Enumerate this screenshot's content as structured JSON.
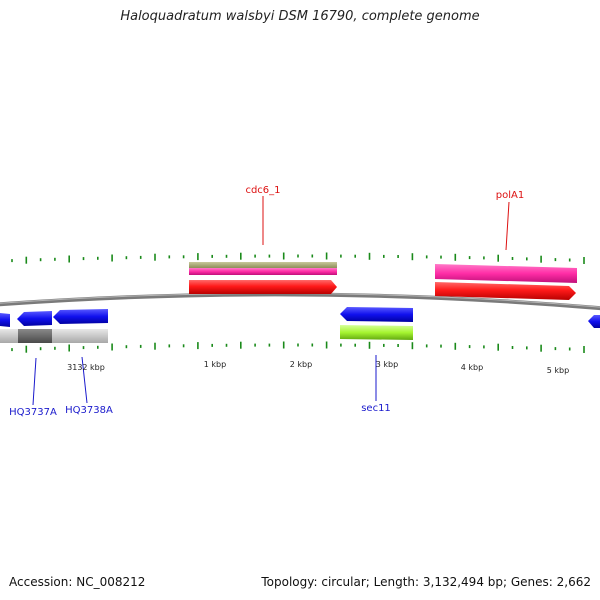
{
  "title": "Haloquadratum walsbyi DSM 16790, complete genome",
  "footer": {
    "accession": "Accession: NC_008212",
    "stats": "Topology: circular; Length: 3,132,494 bp; Genes: 2,662"
  },
  "scale_labels": [
    "3132 kbp",
    "1 kbp",
    "2 kbp",
    "3 kbp",
    "4 kbp",
    "5 kbp"
  ],
  "feature_labels": {
    "cdc6": "cdc6_1",
    "pola1": "polA1",
    "hq3737a": "HQ3737A",
    "hq3738a": "HQ3738A",
    "sec11": "sec11"
  },
  "colors": {
    "tick": "#1a8a1a",
    "backbone": "#7a7a7a",
    "red_gene": "#ff1010",
    "pink_gene": "#ff2da6",
    "olive_track": "#a8a870",
    "blue_gene": "#1010ee",
    "lime_gene": "#9ef026",
    "gray_track": "#bdbdbd",
    "dark_gray_track": "#6a6a6a",
    "label_red": "#dd1111",
    "label_blue": "#1a1acc"
  }
}
